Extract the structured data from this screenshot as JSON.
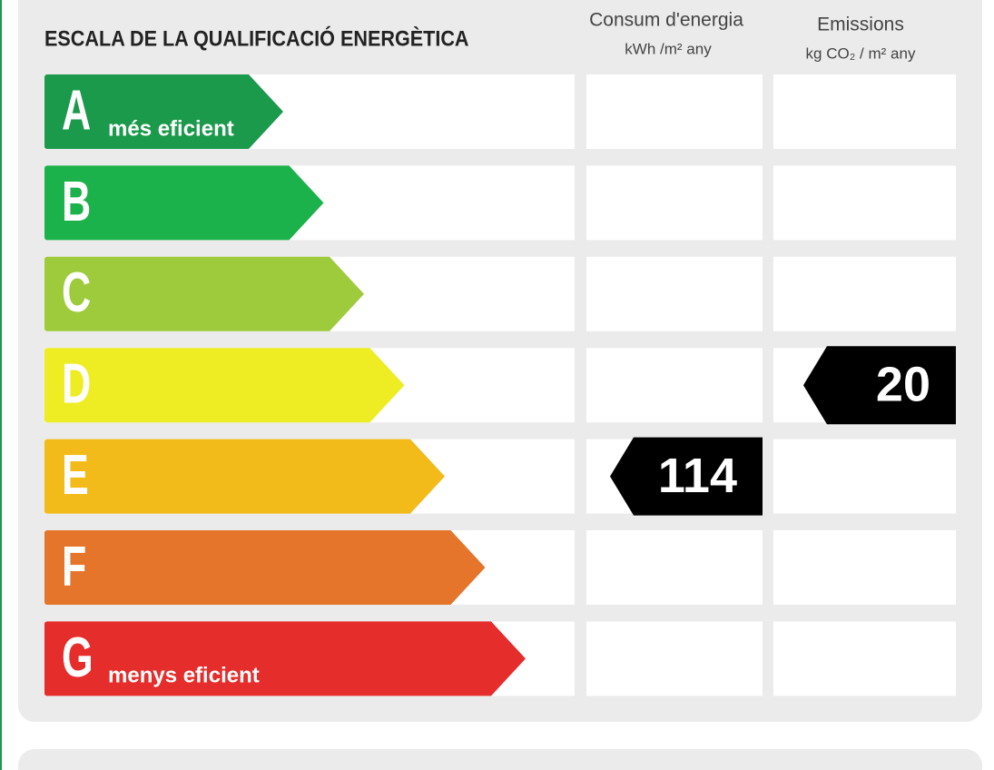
{
  "header": {
    "title": "ESCALA DE LA QUALIFICACIÓ ENERGÈTICA",
    "columns": [
      {
        "name": "Consum d'energia",
        "unit": "kWh /m² any"
      },
      {
        "name": "Emissions",
        "unit": "kg CO₂ / m² any"
      }
    ]
  },
  "grades": [
    {
      "letter": "A",
      "note": "més eficient",
      "color": "#1a9a4a"
    },
    {
      "letter": "B",
      "color": "#1bb24b"
    },
    {
      "letter": "C",
      "color": "#9dcb3b"
    },
    {
      "letter": "D",
      "color": "#eeec22"
    },
    {
      "letter": "E",
      "color": "#f2bb19"
    },
    {
      "letter": "F",
      "color": "#e4752a"
    },
    {
      "letter": "G",
      "note": "menys eficient",
      "color": "#e52d2b"
    }
  ],
  "ratings": [
    {
      "grade": "E",
      "value": 114
    },
    {
      "grade": "D",
      "value": 20
    }
  ]
}
